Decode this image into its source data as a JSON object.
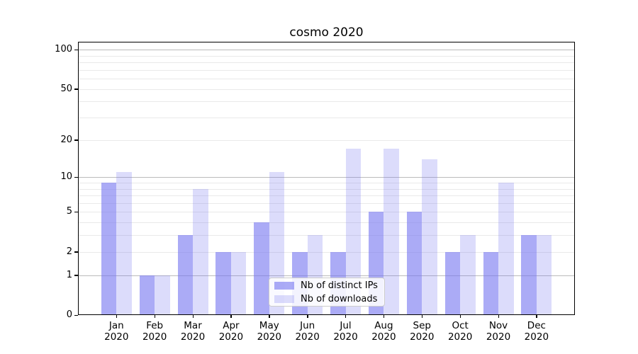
{
  "chart_data": {
    "type": "bar",
    "title": "cosmo 2020",
    "categories": [
      "Jan 2020",
      "Feb 2020",
      "Mar 2020",
      "Apr 2020",
      "May 2020",
      "Jun 2020",
      "Jul 2020",
      "Aug 2020",
      "Sep 2020",
      "Oct 2020",
      "Nov 2020",
      "Dec 2020"
    ],
    "series": [
      {
        "name": "Nb of distinct IPs",
        "values": [
          9,
          1,
          3,
          2,
          4,
          2,
          2,
          5,
          5,
          2,
          2,
          3
        ],
        "color": "#7878f0",
        "alpha": 0.62
      },
      {
        "name": "Nb of downloads",
        "values": [
          11,
          1,
          8,
          2,
          11,
          3,
          17,
          17,
          14,
          3,
          9,
          3
        ],
        "color": "#7878f0",
        "alpha": 0.26
      }
    ],
    "xlabel": "",
    "ylabel": "",
    "yscale": "log-like (position proportional to log10(1+y))",
    "ylim": [
      0,
      116
    ],
    "yticks": [
      0,
      1,
      2,
      5,
      10,
      20,
      50,
      100
    ],
    "grid": {
      "major": [
        1,
        10,
        100
      ],
      "minor": [
        2,
        3,
        4,
        5,
        6,
        7,
        8,
        9,
        20,
        30,
        40,
        50,
        60,
        70,
        80,
        90
      ]
    },
    "legend_position": "lower center",
    "legend_items": [
      "Nb of distinct IPs",
      "Nb of downloads"
    ]
  },
  "legend": {
    "items": [
      {
        "label": "Nb of distinct IPs"
      },
      {
        "label": "Nb of downloads"
      }
    ]
  },
  "colors": {
    "grid_major": "#bbbbbb",
    "grid_minor": "#e9e9e9",
    "spine": "#000000",
    "text": "#000000",
    "legend_border": "#cccccc",
    "bar_base": "#7878f0"
  }
}
